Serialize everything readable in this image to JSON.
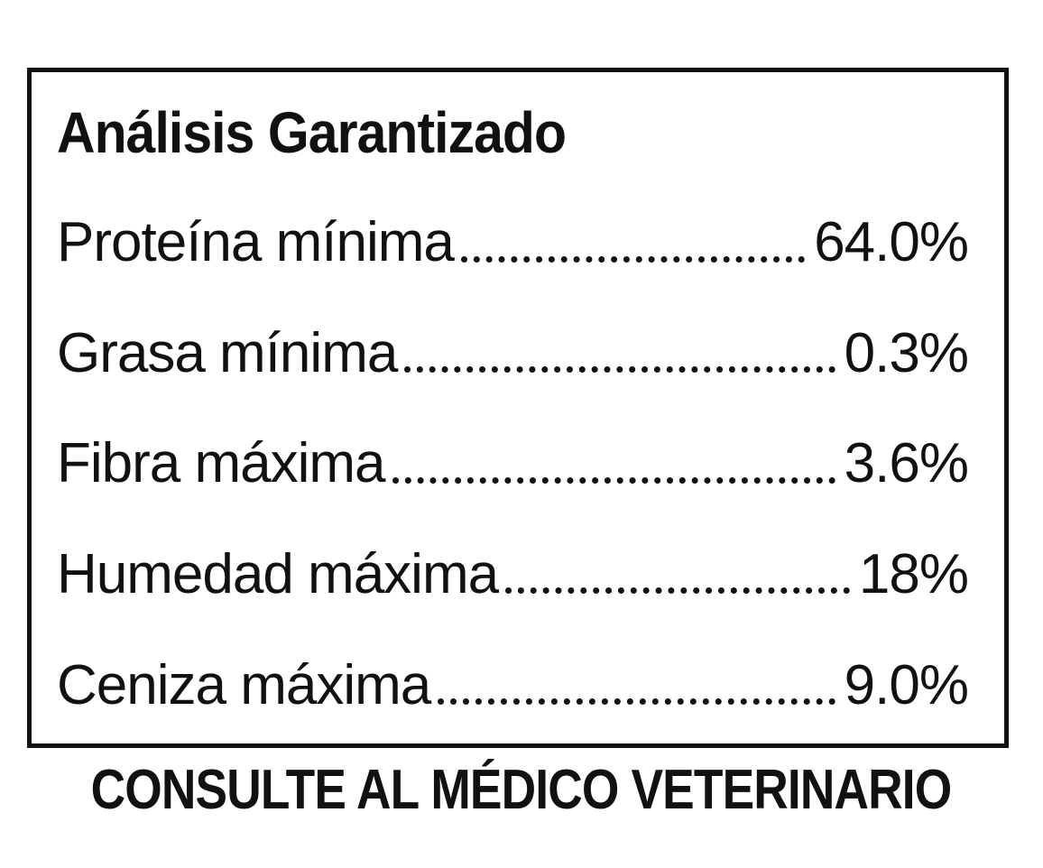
{
  "label": {
    "title": "Análisis Garantizado",
    "rows": [
      {
        "name": "Proteína mínima",
        "value": "64.0%"
      },
      {
        "name": "Grasa mínima",
        "value": "0.3%"
      },
      {
        "name": "Fibra máxima",
        "value": "3.6%"
      },
      {
        "name": "Humedad máxima",
        "value": "18%"
      },
      {
        "name": "Ceniza máxima",
        "value": "9.0%"
      }
    ]
  },
  "footer": {
    "text": "CONSULTE AL MÉDICO VETERINARIO"
  },
  "colors": {
    "text": "#111111",
    "border": "#111111",
    "background": "#ffffff"
  }
}
